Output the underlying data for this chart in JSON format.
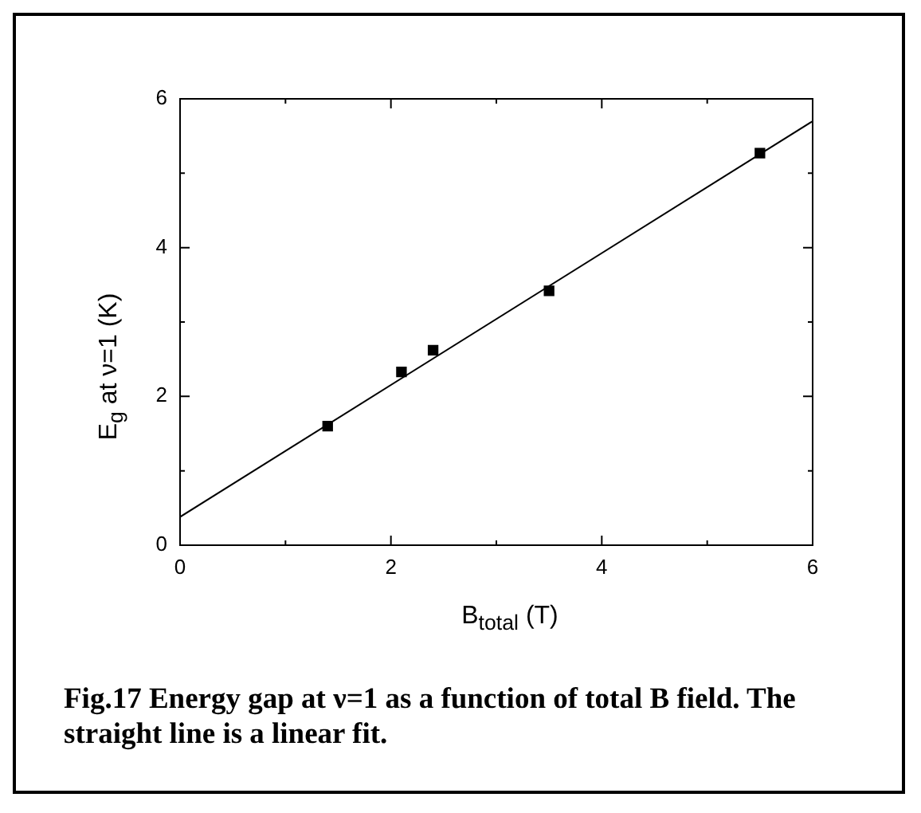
{
  "chart_data": {
    "type": "scatter",
    "title": "Fig.17 Energy gap at ν=1 as a function of total B field. The straight line is a linear fit.",
    "xlabel": "B$_{total}$ (T)",
    "ylabel": "E$_{g}$ at ν=1 (K)",
    "series": [
      {
        "color": "#000000",
        "marker": "square",
        "x": [
          1.4,
          2.1,
          2.4,
          3.5,
          5.5
        ],
        "values": [
          1.6,
          2.33,
          2.62,
          3.42,
          5.27
        ]
      },
      {
        "type": "line",
        "color": "#000000",
        "marker": "none",
        "line_style": "solid",
        "x": [
          0,
          6
        ],
        "values": [
          0.38,
          5.7
        ]
      }
    ],
    "xlim": [
      0,
      6
    ],
    "ylim": [
      0,
      6
    ],
    "xticks": [
      0,
      {
        "value": 1,
        "label": null
      },
      2,
      {
        "value": 3,
        "label": null
      },
      4,
      {
        "value": 5,
        "label": null
      },
      6
    ],
    "yticks": [
      0,
      {
        "value": 1,
        "label": null
      },
      2,
      {
        "value": 3,
        "label": null
      },
      4,
      {
        "value": 5,
        "label": null
      },
      6
    ],
    "grid": false,
    "legend": false
  }
}
